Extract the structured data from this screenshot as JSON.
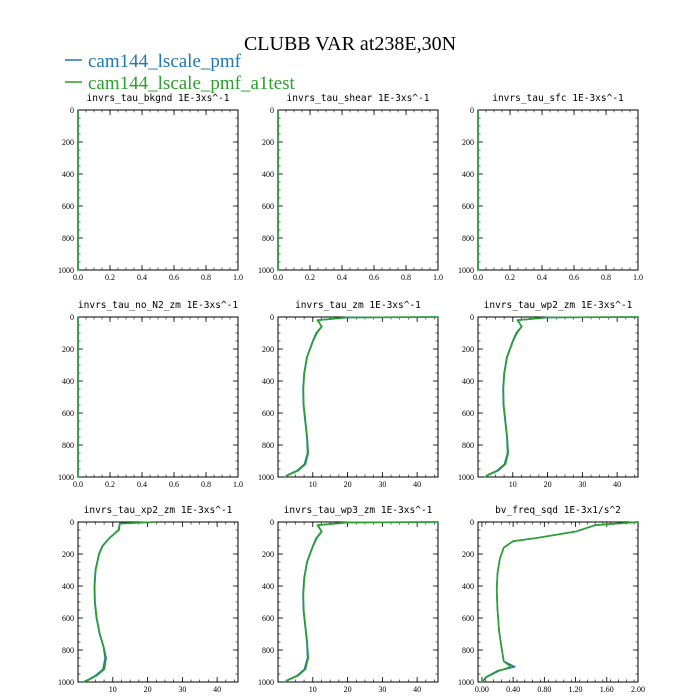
{
  "figure": {
    "title": "CLUBB VAR at238E,30N",
    "legend": [
      {
        "label": "cam144_lscale_pmf",
        "color": "#1f77b4"
      },
      {
        "label": "cam144_lscale_pmf_a1test",
        "color": "#2ca02c"
      }
    ]
  },
  "chart_data": [
    {
      "type": "line",
      "title": "invrs_tau_bkgnd",
      "units": "1E-3xs^-1",
      "xlim": [
        0,
        1.0
      ],
      "ylim": [
        1000,
        0
      ],
      "x_ticks": [
        "0.0",
        "0.2",
        "0.4",
        "0.6",
        "0.8",
        "1.0"
      ],
      "x_tick_values": [
        0,
        0.2,
        0.4,
        0.6,
        0.8,
        1.0
      ],
      "y_ticks": [
        "0",
        "200",
        "400",
        "600",
        "800",
        "1000"
      ],
      "y_tick_values": [
        0,
        200,
        400,
        600,
        800,
        1000
      ],
      "series": [
        {
          "name": "cam144_lscale_pmf",
          "x": [
            0,
            0
          ],
          "y": [
            0,
            1000
          ]
        },
        {
          "name": "cam144_lscale_pmf_a1test",
          "x": [
            0,
            0
          ],
          "y": [
            0,
            1000
          ]
        }
      ]
    },
    {
      "type": "line",
      "title": "invrs_tau_shear",
      "units": "1E-3xs^-1",
      "xlim": [
        0,
        1.0
      ],
      "ylim": [
        1000,
        0
      ],
      "x_ticks": [
        "0.0",
        "0.2",
        "0.4",
        "0.6",
        "0.8",
        "1.0"
      ],
      "x_tick_values": [
        0,
        0.2,
        0.4,
        0.6,
        0.8,
        1.0
      ],
      "y_ticks": [
        "0",
        "200",
        "400",
        "600",
        "800",
        "1000"
      ],
      "y_tick_values": [
        0,
        200,
        400,
        600,
        800,
        1000
      ],
      "series": [
        {
          "name": "cam144_lscale_pmf",
          "x": [
            0,
            0
          ],
          "y": [
            0,
            1000
          ]
        },
        {
          "name": "cam144_lscale_pmf_a1test",
          "x": [
            0,
            0
          ],
          "y": [
            0,
            1000
          ]
        }
      ]
    },
    {
      "type": "line",
      "title": "invrs_tau_sfc",
      "units": "1E-3xs^-1",
      "xlim": [
        0,
        1.0
      ],
      "ylim": [
        1000,
        0
      ],
      "x_ticks": [
        "0.0",
        "0.2",
        "0.4",
        "0.6",
        "0.8",
        "1.0"
      ],
      "x_tick_values": [
        0,
        0.2,
        0.4,
        0.6,
        0.8,
        1.0
      ],
      "y_ticks": [
        "0",
        "200",
        "400",
        "600",
        "800",
        "1000"
      ],
      "y_tick_values": [
        0,
        200,
        400,
        600,
        800,
        1000
      ],
      "series": [
        {
          "name": "cam144_lscale_pmf",
          "x": [
            0,
            0
          ],
          "y": [
            0,
            1000
          ]
        },
        {
          "name": "cam144_lscale_pmf_a1test",
          "x": [
            0,
            0
          ],
          "y": [
            0,
            1000
          ]
        }
      ]
    },
    {
      "type": "line",
      "title": "invrs_tau_no_N2_zm",
      "units": "1E-3xs^-1",
      "xlim": [
        0,
        1.0
      ],
      "ylim": [
        1000,
        0
      ],
      "x_ticks": [
        "0.0",
        "0.2",
        "0.4",
        "0.6",
        "0.8",
        "1.0"
      ],
      "x_tick_values": [
        0,
        0.2,
        0.4,
        0.6,
        0.8,
        1.0
      ],
      "y_ticks": [
        "0",
        "200",
        "400",
        "600",
        "800",
        "1000"
      ],
      "y_tick_values": [
        0,
        200,
        400,
        600,
        800,
        1000
      ],
      "series": [
        {
          "name": "cam144_lscale_pmf",
          "x": [
            0,
            0
          ],
          "y": [
            0,
            1000
          ]
        },
        {
          "name": "cam144_lscale_pmf_a1test",
          "x": [
            0,
            0
          ],
          "y": [
            0,
            1000
          ]
        }
      ]
    },
    {
      "type": "line",
      "title": "invrs_tau_zm",
      "units": "1E-3xs^-1",
      "xlim": [
        0,
        46
      ],
      "ylim": [
        1000,
        0
      ],
      "x_ticks": [
        "10",
        "20",
        "30",
        "40"
      ],
      "x_tick_values": [
        10,
        20,
        30,
        40
      ],
      "y_ticks": [
        "0",
        "200",
        "400",
        "600",
        "800",
        "1000"
      ],
      "y_tick_values": [
        0,
        200,
        400,
        600,
        800,
        1000
      ],
      "series": [
        {
          "name": "cam144_lscale_pmf",
          "x": [
            46,
            20,
            11.5,
            12.5,
            11,
            10,
            8.3,
            7.5,
            7.2,
            7.3,
            7.8,
            8.3,
            8.5,
            7.6,
            5.5,
            3.0,
            2.0
          ],
          "y": [
            0,
            3,
            20,
            60,
            100,
            150,
            250,
            350,
            450,
            550,
            650,
            750,
            850,
            920,
            960,
            985,
            1000
          ]
        },
        {
          "name": "cam144_lscale_pmf_a1test",
          "x": [
            46,
            20,
            11.3,
            12.6,
            11.2,
            10.1,
            8.4,
            7.6,
            7.3,
            7.4,
            7.9,
            8.4,
            8.7,
            7.9,
            5.8,
            3.2,
            2.1
          ],
          "y": [
            0,
            3,
            20,
            60,
            100,
            150,
            250,
            350,
            450,
            550,
            650,
            750,
            850,
            920,
            960,
            985,
            1000
          ]
        }
      ]
    },
    {
      "type": "line",
      "title": "invrs_tau_wp2_zm",
      "units": "1E-3xs^-1",
      "xlim": [
        0,
        46
      ],
      "ylim": [
        1000,
        0
      ],
      "x_ticks": [
        "10",
        "20",
        "30",
        "40"
      ],
      "x_tick_values": [
        10,
        20,
        30,
        40
      ],
      "y_ticks": [
        "0",
        "200",
        "400",
        "600",
        "800",
        "1000"
      ],
      "y_tick_values": [
        0,
        200,
        400,
        600,
        800,
        1000
      ],
      "series": [
        {
          "name": "cam144_lscale_pmf",
          "x": [
            46,
            20,
            11.5,
            12.5,
            11,
            10,
            8.3,
            7.5,
            7.2,
            7.3,
            7.8,
            8.3,
            8.5,
            7.6,
            5.5,
            3.0,
            2.0
          ],
          "y": [
            0,
            3,
            20,
            60,
            100,
            150,
            250,
            350,
            450,
            550,
            650,
            750,
            850,
            920,
            960,
            985,
            1000
          ]
        },
        {
          "name": "cam144_lscale_pmf_a1test",
          "x": [
            46,
            20,
            11.3,
            12.6,
            11.2,
            10.1,
            8.4,
            7.6,
            7.3,
            7.4,
            7.9,
            8.4,
            8.7,
            7.9,
            5.8,
            3.2,
            2.1
          ],
          "y": [
            0,
            3,
            20,
            60,
            100,
            150,
            250,
            350,
            450,
            550,
            650,
            750,
            850,
            920,
            960,
            985,
            1000
          ]
        }
      ]
    },
    {
      "type": "line",
      "title": "invrs_tau_xp2_zm",
      "units": "1E-3xs^-1",
      "xlim": [
        0,
        46
      ],
      "ylim": [
        1000,
        0
      ],
      "x_ticks": [
        "10",
        "20",
        "30",
        "40"
      ],
      "x_tick_values": [
        10,
        20,
        30,
        40
      ],
      "y_ticks": [
        "0",
        "200",
        "400",
        "600",
        "800",
        "1000"
      ],
      "y_tick_values": [
        0,
        200,
        400,
        600,
        800,
        1000
      ],
      "series": [
        {
          "name": "cam144_lscale_pmf",
          "x": [
            22,
            12,
            11.8,
            9,
            7,
            6,
            5,
            4.7,
            4.8,
            5.3,
            6.2,
            7.3,
            7.8,
            7.2,
            5,
            3,
            1.5
          ],
          "y": [
            0,
            10,
            50,
            100,
            150,
            200,
            300,
            400,
            500,
            600,
            700,
            780,
            850,
            920,
            960,
            985,
            1000
          ]
        },
        {
          "name": "cam144_lscale_pmf_a1test",
          "x": [
            22,
            12,
            11.6,
            9.1,
            7.1,
            6.1,
            5.1,
            4.8,
            4.9,
            5.4,
            6.3,
            7.4,
            8.1,
            7.6,
            5.4,
            3.3,
            1.6
          ],
          "y": [
            0,
            10,
            50,
            100,
            150,
            200,
            300,
            400,
            500,
            600,
            700,
            780,
            850,
            920,
            960,
            985,
            1000
          ]
        }
      ]
    },
    {
      "type": "line",
      "title": "invrs_tau_wp3_zm",
      "units": "1E-3xs^-1",
      "xlim": [
        0,
        46
      ],
      "ylim": [
        1000,
        0
      ],
      "x_ticks": [
        "10",
        "20",
        "30",
        "40"
      ],
      "x_tick_values": [
        10,
        20,
        30,
        40
      ],
      "y_ticks": [
        "0",
        "200",
        "400",
        "600",
        "800",
        "1000"
      ],
      "y_tick_values": [
        0,
        200,
        400,
        600,
        800,
        1000
      ],
      "series": [
        {
          "name": "cam144_lscale_pmf",
          "x": [
            46,
            20,
            11.5,
            12.5,
            11,
            10,
            8.3,
            7.5,
            7.2,
            7.3,
            7.8,
            8.3,
            8.5,
            7.6,
            5.5,
            3.0,
            2.0
          ],
          "y": [
            0,
            3,
            20,
            60,
            100,
            150,
            250,
            350,
            450,
            550,
            650,
            750,
            850,
            920,
            960,
            985,
            1000
          ]
        },
        {
          "name": "cam144_lscale_pmf_a1test",
          "x": [
            46,
            20,
            11.3,
            12.6,
            11.2,
            10.1,
            8.4,
            7.6,
            7.3,
            7.4,
            7.9,
            8.4,
            8.7,
            7.9,
            5.8,
            3.2,
            2.1
          ],
          "y": [
            0,
            3,
            20,
            60,
            100,
            150,
            250,
            350,
            450,
            550,
            650,
            750,
            850,
            920,
            960,
            985,
            1000
          ]
        }
      ]
    },
    {
      "type": "line",
      "title": "bv_freq_sqd",
      "units": "1E-3x1/s^2",
      "xlim": [
        -0.05,
        2.0
      ],
      "ylim": [
        1000,
        0
      ],
      "x_ticks": [
        "0.00",
        "0.40",
        "0.80",
        "1.20",
        "1.60",
        "2.00"
      ],
      "x_tick_values": [
        0,
        0.4,
        0.8,
        1.2,
        1.6,
        2.0
      ],
      "y_ticks": [
        "0",
        "200",
        "400",
        "600",
        "800",
        "1000"
      ],
      "y_tick_values": [
        0,
        200,
        400,
        600,
        800,
        1000
      ],
      "series": [
        {
          "name": "cam144_lscale_pmf",
          "x": [
            2.0,
            1.45,
            1.2,
            0.7,
            0.4,
            0.28,
            0.23,
            0.2,
            0.19,
            0.2,
            0.22,
            0.25,
            0.28,
            0.42,
            0.2,
            0.05,
            0.0
          ],
          "y": [
            0,
            20,
            60,
            100,
            120,
            160,
            230,
            320,
            430,
            550,
            680,
            780,
            870,
            905,
            930,
            970,
            1000
          ]
        },
        {
          "name": "cam144_lscale_pmf_a1test",
          "x": [
            2.0,
            1.45,
            1.2,
            0.7,
            0.4,
            0.28,
            0.23,
            0.2,
            0.19,
            0.2,
            0.22,
            0.25,
            0.28,
            0.37,
            0.22,
            0.06,
            0.0
          ],
          "y": [
            0,
            20,
            60,
            100,
            120,
            160,
            230,
            320,
            430,
            550,
            680,
            780,
            870,
            905,
            930,
            970,
            1000
          ]
        }
      ]
    }
  ]
}
